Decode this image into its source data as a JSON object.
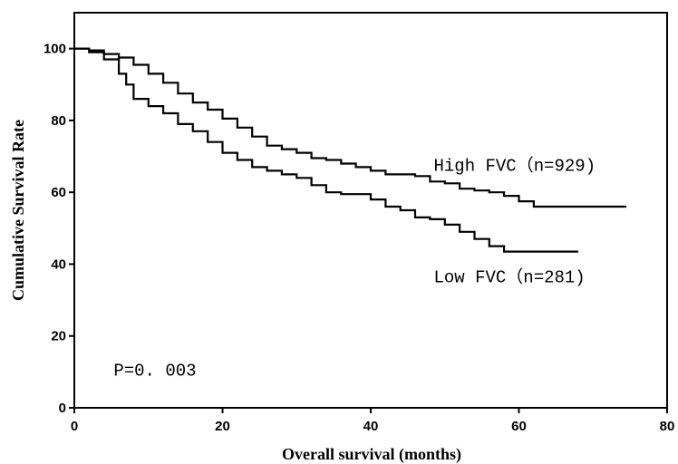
{
  "chart_data": {
    "type": "line",
    "title": "",
    "xlabel": "Overall survival (months)",
    "ylabel": "Cumulative Survival Rate",
    "xlim": [
      0,
      80
    ],
    "ylim": [
      0,
      110
    ],
    "xticks": [
      0,
      20,
      40,
      60,
      80
    ],
    "yticks": [
      0,
      20,
      40,
      60,
      80,
      100
    ],
    "grid": false,
    "step": true,
    "series": [
      {
        "name": "High FVC (n=929)",
        "x": [
          0,
          2,
          4,
          6,
          8,
          10,
          12,
          14,
          16,
          18,
          20,
          22,
          24,
          26,
          28,
          30,
          32,
          34,
          36,
          38,
          40,
          42,
          44,
          46,
          48,
          50,
          52,
          54,
          56,
          58,
          60,
          62,
          64,
          66,
          68,
          70,
          72,
          74.5
        ],
        "y": [
          100,
          99.5,
          98.5,
          97.5,
          95.5,
          93,
          90.5,
          87.5,
          85,
          83,
          80.5,
          78,
          75.5,
          73,
          72,
          71,
          69.5,
          69,
          68,
          67,
          66,
          65,
          65,
          64.5,
          63,
          62.5,
          61,
          60.5,
          60,
          59,
          57.5,
          56,
          56,
          56,
          56,
          56,
          56,
          56
        ]
      },
      {
        "name": "Low FVC (n=281)",
        "x": [
          0,
          2,
          4,
          6,
          7,
          8,
          10,
          12,
          14,
          16,
          18,
          20,
          22,
          24,
          26,
          28,
          30,
          32,
          34,
          36,
          38,
          40,
          42,
          44,
          46,
          48,
          50,
          52,
          54,
          56,
          58,
          60,
          62,
          64,
          66,
          68
        ],
        "y": [
          100,
          99,
          97,
          93,
          90,
          86,
          84,
          82,
          79,
          77,
          74,
          71,
          69,
          67,
          66,
          65,
          64,
          62,
          60,
          59.5,
          59.5,
          58,
          56,
          55,
          53,
          52.5,
          51,
          49,
          47,
          45,
          43.5,
          43.5,
          43.5,
          43.5,
          43.5,
          43.5
        ]
      }
    ],
    "annotations": [
      {
        "text": "High FVC（n=929)",
        "x": 48.5,
        "y": 66
      },
      {
        "text": "Low FVC（n=281)",
        "x": 48.5,
        "y": 35
      },
      {
        "text": "P=0. 003",
        "x": 5.3,
        "y": 9
      }
    ]
  }
}
